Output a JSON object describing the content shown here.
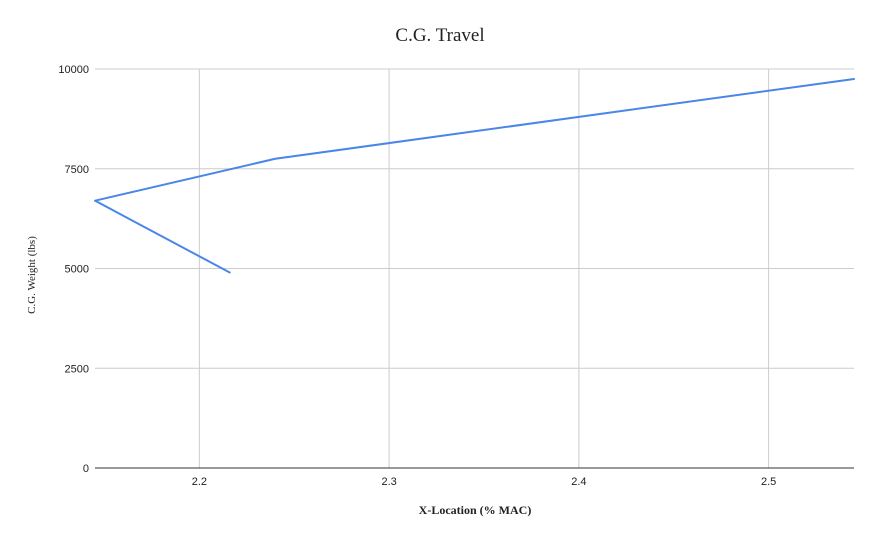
{
  "chart_data": {
    "type": "line",
    "title": "C.G. Travel",
    "xlabel": "X-Location (% MAC)",
    "ylabel": "C.G. Weight (lbs)",
    "xlim": [
      2.145,
      2.545
    ],
    "ylim": [
      0,
      10000
    ],
    "xticks": [
      2.2,
      2.3,
      2.4,
      2.5
    ],
    "xtick_labels": [
      "2.2",
      "2.3",
      "2.4",
      "2.5"
    ],
    "yticks": [
      0,
      2500,
      5000,
      7500,
      10000
    ],
    "ytick_labels": [
      "0",
      "2500",
      "5000",
      "7500",
      "10000"
    ],
    "grid": true,
    "series": [
      {
        "name": "C.G. Weight",
        "color": "#4a86e8",
        "x": [
          2.216,
          2.145,
          2.24,
          2.545
        ],
        "y": [
          4900,
          6700,
          7750,
          9750
        ]
      }
    ]
  }
}
